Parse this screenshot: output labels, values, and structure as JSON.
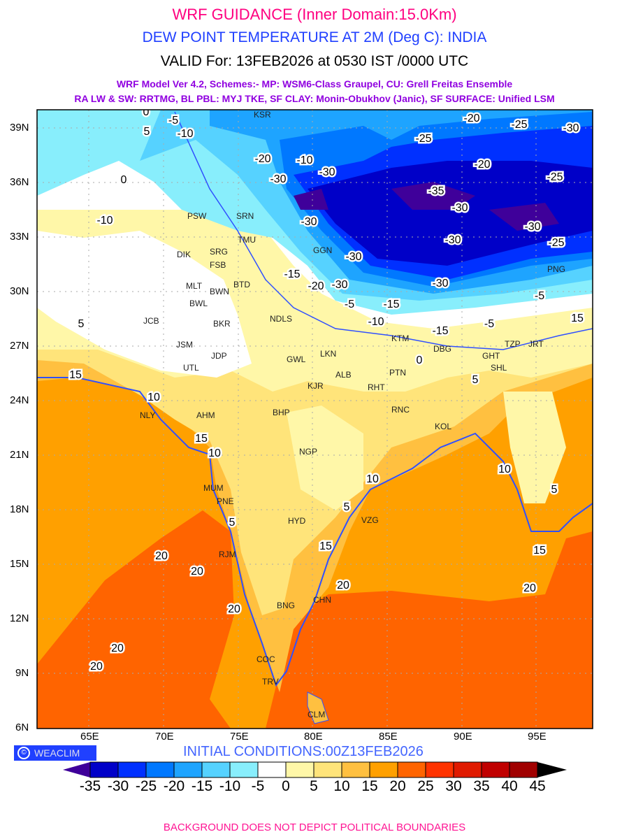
{
  "title": {
    "line1": "WRF GUIDANCE (Inner Domain:15.0Km)",
    "line2": "DEW POINT TEMPERATURE AT 2M (Deg C): INDIA",
    "line3": "VALID For: 13FEB2026 at 0530 IST /0000 UTC",
    "line4": "WRF Model Ver 4.2, Schemes:- MP: WSM6-Class Graupel, CU: Grell Freitas Ensemble",
    "line5": "RA LW & SW: RRTMG, BL PBL: MYJ TKE, SF CLAY: Monin-Obukhov (Janic), SF SURFACE: Unified LSM"
  },
  "map": {
    "lat_labels": [
      "39N",
      "36N",
      "33N",
      "30N",
      "27N",
      "24N",
      "21N",
      "18N",
      "15N",
      "12N",
      "9N",
      "6N"
    ],
    "lon_labels": [
      "65E",
      "70E",
      "75E",
      "80E",
      "85E",
      "90E",
      "95E"
    ],
    "cities": [
      "KSR",
      "PSW",
      "SRN",
      "TMU",
      "DIK",
      "SRG",
      "FSB",
      "MLT",
      "BWN",
      "BTD",
      "BWL",
      "JCB",
      "BKR",
      "NDLS",
      "GGN",
      "JSM",
      "JDP",
      "UTL",
      "GWL",
      "LKN",
      "ALB",
      "KJR",
      "PTN",
      "RHT",
      "BHP",
      "AHM",
      "NLY",
      "RNC",
      "KOL",
      "NGP",
      "MUM",
      "PNE",
      "HYD",
      "VZG",
      "RJM",
      "BNG",
      "CHN",
      "COC",
      "TRV",
      "CLM",
      "DBG",
      "GHT",
      "SHL",
      "TZP",
      "JRT",
      "PNG",
      "KTM"
    ],
    "contour_labels": [
      "-20",
      "-25",
      "-30",
      "-15",
      "-10",
      "-5",
      "-20",
      "-10",
      "-30",
      "-35",
      "-30",
      "-30",
      "-30",
      "-25",
      "-30",
      "-25",
      "-30",
      "-15",
      "-20",
      "-30",
      "-15",
      "-10",
      "-5",
      "0",
      "5",
      "0",
      "5",
      "15",
      "10",
      "15",
      "10",
      "10",
      "5",
      "5",
      "15",
      "20",
      "20",
      "20",
      "20",
      "20",
      "15",
      "20",
      "10",
      "5",
      "15",
      "20",
      "-20",
      "-25",
      "-30",
      "-5",
      "0",
      "5",
      "-10",
      "-5",
      "-30"
    ]
  },
  "branding": {
    "logo_text": "WEACLIM",
    "initial_conditions": "INITIAL CONDITIONS:00Z13FEB2026"
  },
  "legend": {
    "labels": [
      "-35",
      "-30",
      "-25",
      "-20",
      "-15",
      "-10",
      "-5",
      "0",
      "5",
      "10",
      "15",
      "20",
      "25",
      "30",
      "35",
      "40",
      "45"
    ],
    "colors": [
      "#0000c8",
      "#0030ff",
      "#0078ff",
      "#1ea4ff",
      "#56d2ff",
      "#88eefc",
      "#ffffff",
      "#fff7a8",
      "#ffe47a",
      "#ffc040",
      "#ffa000",
      "#ff6400",
      "#ff3300",
      "#e01a00",
      "#c00000",
      "#a00000"
    ],
    "under_color": "#3f009a",
    "over_color": "#000000"
  },
  "footer": "BACKGROUND DOES NOT DEPICT POLITICAL BOUNDARIES"
}
